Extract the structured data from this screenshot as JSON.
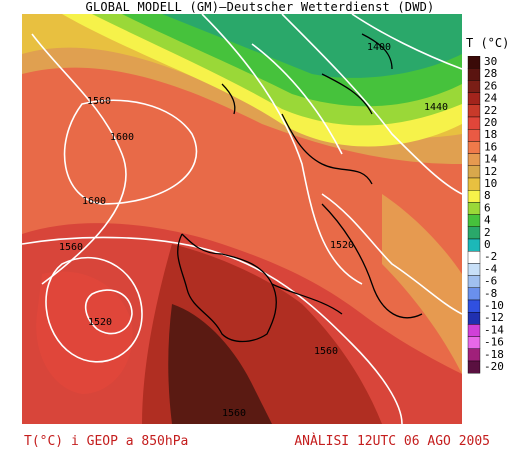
{
  "header": {
    "title": "GLOBAL MODELL (GM)—Deutscher Wetterdienst (DWD)"
  },
  "legend": {
    "title": "T (°C)",
    "levels": [
      {
        "label": "30",
        "color": "#3a0a08"
      },
      {
        "label": "28",
        "color": "#5a1410"
      },
      {
        "label": "26",
        "color": "#7a1e16"
      },
      {
        "label": "24",
        "color": "#a3241c"
      },
      {
        "label": "22",
        "color": "#c83a2a"
      },
      {
        "label": "20",
        "color": "#e0463a"
      },
      {
        "label": "18",
        "color": "#ea5a44"
      },
      {
        "label": "16",
        "color": "#f07a4a"
      },
      {
        "label": "14",
        "color": "#e69a50"
      },
      {
        "label": "12",
        "color": "#d8a84c"
      },
      {
        "label": "10",
        "color": "#e8c040"
      },
      {
        "label": "8",
        "color": "#f6f24a"
      },
      {
        "label": "6",
        "color": "#9ad838"
      },
      {
        "label": "4",
        "color": "#46c23c"
      },
      {
        "label": "2",
        "color": "#2aa86a"
      },
      {
        "label": "0",
        "color": "#1cb8b8"
      },
      {
        "label": "-2",
        "color": "#ffffff"
      },
      {
        "label": "-4",
        "color": "#c8e0f8"
      },
      {
        "label": "-6",
        "color": "#a0c0f0"
      },
      {
        "label": "-8",
        "color": "#6a90ec"
      },
      {
        "label": "-10",
        "color": "#3050e0"
      },
      {
        "label": "-12",
        "color": "#2030b0"
      },
      {
        "label": "-14",
        "color": "#d040d8"
      },
      {
        "label": "-16",
        "color": "#e868e8"
      },
      {
        "label": "-18",
        "color": "#a0207a"
      },
      {
        "label": "-20",
        "color": "#5a1040"
      }
    ]
  },
  "map": {
    "isolines": [
      {
        "label": "1400"
      },
      {
        "label": "1440"
      },
      {
        "label": "1560"
      },
      {
        "label": "1600"
      },
      {
        "label": "1600"
      },
      {
        "label": "1560"
      },
      {
        "label": "1520"
      },
      {
        "label": "1520"
      },
      {
        "label": "1560"
      },
      {
        "label": "1560"
      }
    ]
  },
  "footer": {
    "left": "T(°C) i GEOP a 850hPa",
    "right": "ANÀLISI 12UTC 06 AGO 2005"
  }
}
